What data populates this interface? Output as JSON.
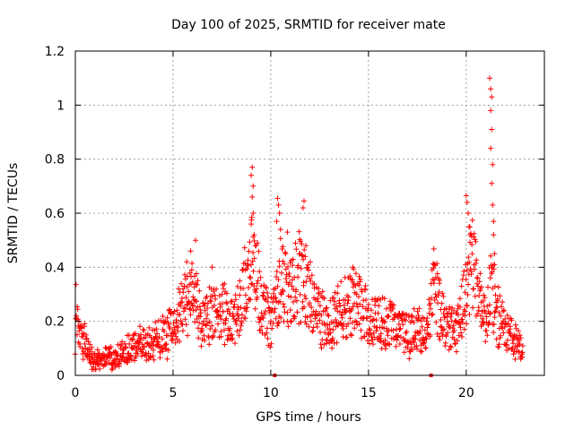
{
  "chart_data": {
    "type": "scatter",
    "title": "Day 100 of 2025, SRMTID for receiver mate",
    "xlabel": "GPS time / hours",
    "ylabel": "SRMTID / TECUs",
    "xlim": [
      0,
      24
    ],
    "ylim": [
      0,
      1.2
    ],
    "xticks": [
      0,
      5,
      10,
      15,
      20
    ],
    "xtick_labels": [
      "0",
      "5",
      "10",
      "15",
      "20"
    ],
    "yticks": [
      0,
      0.2,
      0.4,
      0.6,
      0.8,
      1,
      1.2
    ],
    "ytick_labels": [
      "0",
      "0.2",
      "0.4",
      "0.6",
      "0.8",
      "1",
      "1.2"
    ],
    "grid": true,
    "marker": "+",
    "series": [
      {
        "name": "SRMTID",
        "color": "#ff0000",
        "profile": [
          [
            0.0,
            0.25
          ],
          [
            0.2,
            0.16
          ],
          [
            0.5,
            0.12
          ],
          [
            0.8,
            0.06
          ],
          [
            1.2,
            0.05
          ],
          [
            1.6,
            0.07
          ],
          [
            2.0,
            0.06
          ],
          [
            2.5,
            0.08
          ],
          [
            3.0,
            0.11
          ],
          [
            3.5,
            0.12
          ],
          [
            4.0,
            0.13
          ],
          [
            4.5,
            0.14
          ],
          [
            5.0,
            0.17
          ],
          [
            5.5,
            0.26
          ],
          [
            6.0,
            0.33
          ],
          [
            6.5,
            0.2
          ],
          [
            7.0,
            0.22
          ],
          [
            7.5,
            0.25
          ],
          [
            8.0,
            0.2
          ],
          [
            8.5,
            0.26
          ],
          [
            9.0,
            0.42
          ],
          [
            9.5,
            0.28
          ],
          [
            10.0,
            0.18
          ],
          [
            10.5,
            0.36
          ],
          [
            11.0,
            0.32
          ],
          [
            11.5,
            0.38
          ],
          [
            12.0,
            0.3
          ],
          [
            12.5,
            0.22
          ],
          [
            13.0,
            0.2
          ],
          [
            13.5,
            0.23
          ],
          [
            14.0,
            0.26
          ],
          [
            14.5,
            0.28
          ],
          [
            15.0,
            0.2
          ],
          [
            15.5,
            0.19
          ],
          [
            16.0,
            0.2
          ],
          [
            16.5,
            0.18
          ],
          [
            17.0,
            0.15
          ],
          [
            17.5,
            0.17
          ],
          [
            18.0,
            0.16
          ],
          [
            18.3,
            0.33
          ],
          [
            18.6,
            0.26
          ],
          [
            19.0,
            0.18
          ],
          [
            19.5,
            0.18
          ],
          [
            20.0,
            0.3
          ],
          [
            20.3,
            0.45
          ],
          [
            20.6,
            0.28
          ],
          [
            21.0,
            0.19
          ],
          [
            21.3,
            0.33
          ],
          [
            21.6,
            0.22
          ],
          [
            22.0,
            0.18
          ],
          [
            22.5,
            0.12
          ],
          [
            22.9,
            0.11
          ]
        ],
        "spikes": [
          [
            9.05,
            0.77
          ],
          [
            9.0,
            0.74
          ],
          [
            9.1,
            0.7
          ],
          [
            9.05,
            0.66
          ],
          [
            9.1,
            0.6
          ],
          [
            9.0,
            0.56
          ],
          [
            9.15,
            0.52
          ],
          [
            10.35,
            0.655
          ],
          [
            10.4,
            0.63
          ],
          [
            10.45,
            0.6
          ],
          [
            10.3,
            0.57
          ],
          [
            10.5,
            0.54
          ],
          [
            10.85,
            0.53
          ],
          [
            11.7,
            0.645
          ],
          [
            11.65,
            0.62
          ],
          [
            20.0,
            0.665
          ],
          [
            20.05,
            0.64
          ],
          [
            20.1,
            0.6
          ],
          [
            20.15,
            0.55
          ],
          [
            20.2,
            0.52
          ],
          [
            20.3,
            0.45
          ],
          [
            21.2,
            1.1
          ],
          [
            21.25,
            1.06
          ],
          [
            21.3,
            1.03
          ],
          [
            21.25,
            0.98
          ],
          [
            21.3,
            0.91
          ],
          [
            21.25,
            0.84
          ],
          [
            21.35,
            0.78
          ],
          [
            21.3,
            0.71
          ],
          [
            21.35,
            0.63
          ],
          [
            21.4,
            0.57
          ],
          [
            21.4,
            0.52
          ],
          [
            21.45,
            0.45
          ],
          [
            21.45,
            0.41
          ],
          [
            5.7,
            0.42
          ],
          [
            5.9,
            0.46
          ],
          [
            6.15,
            0.5
          ],
          [
            8.7,
            0.39
          ],
          [
            14.2,
            0.4
          ],
          [
            18.35,
            0.41
          ],
          [
            7.0,
            0.4
          ],
          [
            11.8,
            0.48
          ]
        ],
        "zero_points": [
          [
            10.2,
            0.0
          ],
          [
            18.2,
            0.0
          ]
        ]
      }
    ]
  }
}
